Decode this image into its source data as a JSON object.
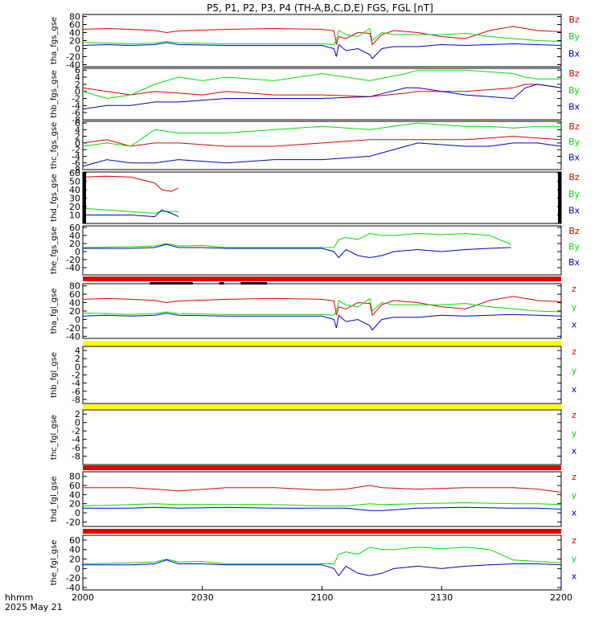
{
  "figure": {
    "title": "P5, P1, P2, P3, P4 (TH-A,B,C,D,E) FGS, FGL [nT]",
    "footer_line1": "hhmm",
    "footer_line2": "2025 May 21"
  },
  "colors": {
    "red": "#e00000",
    "green": "#00e000",
    "blue": "#0000d0",
    "yellow": "#ffff00",
    "black": "#000000"
  },
  "chart_data": [
    {
      "type": "line",
      "ylabel": "tha_fgs_gse",
      "ylim": [
        -45,
        85
      ],
      "yticks": [
        80,
        60,
        40,
        20,
        0,
        -20,
        -40
      ],
      "legend": [
        "Bz",
        "By",
        "Bx"
      ],
      "series": [
        {
          "name": "Bz",
          "x": [
            0,
            10,
            20,
            30,
            35,
            40,
            60,
            80,
            100,
            105,
            106,
            107,
            110,
            115,
            120,
            121,
            125,
            130,
            140,
            150,
            160,
            170,
            180,
            190,
            200
          ],
          "y": [
            48,
            50,
            48,
            45,
            40,
            44,
            48,
            50,
            48,
            44,
            10,
            30,
            25,
            40,
            38,
            10,
            35,
            45,
            40,
            30,
            25,
            45,
            55,
            45,
            42
          ]
        },
        {
          "name": "By",
          "x": [
            0,
            10,
            20,
            30,
            35,
            40,
            60,
            80,
            100,
            105,
            106,
            107,
            110,
            115,
            120,
            121,
            125,
            130,
            140,
            150,
            160,
            170,
            180,
            190,
            200
          ],
          "y": [
            15,
            14,
            12,
            14,
            18,
            14,
            12,
            12,
            12,
            10,
            20,
            45,
            35,
            30,
            50,
            20,
            40,
            35,
            35,
            35,
            38,
            30,
            25,
            20,
            18
          ]
        },
        {
          "name": "Bx",
          "x": [
            0,
            10,
            20,
            30,
            35,
            40,
            60,
            80,
            100,
            105,
            106,
            107,
            110,
            115,
            120,
            121,
            125,
            130,
            140,
            150,
            160,
            170,
            180,
            190,
            200
          ],
          "y": [
            8,
            10,
            8,
            10,
            15,
            10,
            8,
            8,
            8,
            0,
            -20,
            10,
            -5,
            0,
            -15,
            -25,
            0,
            5,
            5,
            10,
            8,
            10,
            12,
            10,
            8
          ]
        }
      ]
    },
    {
      "type": "line",
      "ylabel": "thb_fgs_gse",
      "ylim": [
        -8,
        6.5
      ],
      "yticks": [
        6,
        4,
        2,
        0,
        -2,
        -4,
        -6,
        -8
      ],
      "legend": [
        "Bz",
        "By",
        "Bx"
      ],
      "series": [
        {
          "name": "Bz",
          "x": [
            0,
            10,
            20,
            30,
            40,
            50,
            60,
            80,
            100,
            120,
            135,
            140,
            160,
            170,
            180,
            185,
            190,
            200
          ],
          "y": [
            1,
            0,
            -1,
            0,
            -0.5,
            -1,
            0,
            -1,
            -1,
            -1.5,
            -0.5,
            0,
            0,
            0.5,
            1,
            2,
            2,
            1
          ]
        },
        {
          "name": "By",
          "x": [
            0,
            10,
            20,
            30,
            40,
            50,
            60,
            80,
            100,
            120,
            135,
            140,
            160,
            170,
            180,
            185,
            190,
            200
          ],
          "y": [
            0,
            -2,
            -1,
            2,
            4,
            3,
            4,
            3,
            5,
            3,
            5,
            6,
            6,
            5.5,
            5,
            4,
            3.5,
            3.5
          ]
        },
        {
          "name": "Bx",
          "x": [
            0,
            10,
            20,
            30,
            40,
            50,
            60,
            80,
            100,
            120,
            135,
            140,
            160,
            170,
            180,
            185,
            190,
            200
          ],
          "y": [
            -5,
            -4,
            -4,
            -3,
            -3,
            -2.5,
            -2,
            -2,
            -2,
            -1.5,
            1,
            1,
            -1,
            -1.5,
            -2,
            1,
            2,
            1
          ]
        }
      ]
    },
    {
      "type": "line",
      "ylabel": "thc_fgs_gse",
      "ylim": [
        -8,
        6.5
      ],
      "yticks": [
        6,
        4,
        2,
        0,
        -2,
        -4,
        -6,
        -8
      ],
      "legend": [
        "Bz",
        "By",
        "Bx"
      ],
      "series": [
        {
          "name": "Bz",
          "x": [
            0,
            10,
            20,
            30,
            40,
            60,
            80,
            100,
            120,
            140,
            160,
            170,
            180,
            190,
            200
          ],
          "y": [
            0,
            1,
            -1,
            0,
            0,
            -1,
            -1,
            0,
            1,
            1,
            1,
            1.5,
            2,
            1.5,
            1
          ]
        },
        {
          "name": "By",
          "x": [
            0,
            10,
            20,
            30,
            40,
            60,
            80,
            100,
            120,
            140,
            160,
            170,
            180,
            190,
            200
          ],
          "y": [
            -1,
            0,
            -1,
            4,
            3,
            3,
            4,
            5,
            4,
            6,
            5,
            5,
            4.5,
            5,
            5
          ]
        },
        {
          "name": "Bx",
          "x": [
            0,
            10,
            20,
            30,
            40,
            60,
            80,
            100,
            120,
            140,
            160,
            170,
            180,
            190,
            200
          ],
          "y": [
            -7,
            -5,
            -6,
            -6,
            -5,
            -6,
            -5,
            -5,
            -4,
            0,
            -1,
            -1,
            0,
            0,
            -1
          ]
        }
      ]
    },
    {
      "type": "line",
      "ylabel": "thd_fgs_gse",
      "ylim": [
        0,
        61
      ],
      "yticks": [
        60,
        50,
        40,
        30,
        20,
        10
      ],
      "legend": [
        "Bz",
        "By",
        "Bx"
      ],
      "series": [
        {
          "name": "Bz",
          "x": [
            0,
            10,
            20,
            30,
            33,
            37,
            40
          ],
          "y": [
            55,
            56,
            55,
            48,
            40,
            38,
            42
          ]
        },
        {
          "name": "By",
          "x": [
            0,
            10,
            20,
            30,
            33,
            37,
            40
          ],
          "y": [
            18,
            16,
            14,
            12,
            14,
            14,
            14
          ]
        },
        {
          "name": "Bx",
          "x": [
            0,
            10,
            20,
            30,
            33,
            37,
            40
          ],
          "y": [
            10,
            10,
            10,
            8,
            16,
            12,
            8
          ]
        }
      ]
    },
    {
      "type": "line",
      "ylabel": "the_fgs_gse",
      "ylim": [
        -58,
        64
      ],
      "yticks": [
        60,
        40,
        20,
        0,
        -20,
        -40
      ],
      "legend": [
        "Bz",
        "By",
        "Bx"
      ],
      "series": [
        {
          "name": "By",
          "x": [
            0,
            20,
            30,
            35,
            40,
            50,
            60,
            80,
            100,
            105,
            107,
            110,
            115,
            120,
            125,
            130,
            140,
            150,
            160,
            170,
            179
          ],
          "y": [
            10,
            12,
            14,
            20,
            14,
            15,
            10,
            10,
            10,
            10,
            30,
            35,
            30,
            45,
            40,
            40,
            45,
            42,
            45,
            40,
            18
          ]
        },
        {
          "name": "Bx",
          "x": [
            0,
            20,
            30,
            35,
            40,
            50,
            60,
            80,
            100,
            105,
            107,
            110,
            115,
            120,
            125,
            130,
            140,
            150,
            160,
            170,
            179
          ],
          "y": [
            8,
            8,
            10,
            18,
            10,
            10,
            8,
            8,
            8,
            0,
            -15,
            5,
            -10,
            -15,
            -10,
            0,
            5,
            0,
            5,
            8,
            10
          ]
        }
      ]
    },
    {
      "type": "line",
      "ylabel": "tha_fgl_gse",
      "ylim": [
        -45,
        85
      ],
      "yticks": [
        80,
        60,
        40,
        20,
        0,
        -20,
        -40
      ],
      "legend": [
        "z",
        "y",
        "x"
      ],
      "series": [
        {
          "name": "z",
          "x": [
            0,
            10,
            20,
            30,
            35,
            40,
            60,
            80,
            100,
            105,
            106,
            107,
            110,
            115,
            120,
            121,
            125,
            130,
            140,
            150,
            160,
            170,
            180,
            190,
            200
          ],
          "y": [
            48,
            50,
            48,
            45,
            40,
            44,
            48,
            50,
            48,
            44,
            10,
            30,
            25,
            40,
            38,
            10,
            35,
            45,
            40,
            30,
            25,
            45,
            55,
            45,
            42
          ]
        },
        {
          "name": "y",
          "x": [
            0,
            10,
            20,
            30,
            35,
            40,
            60,
            80,
            100,
            105,
            106,
            107,
            110,
            115,
            120,
            121,
            125,
            130,
            140,
            150,
            160,
            170,
            180,
            190,
            200
          ],
          "y": [
            15,
            14,
            12,
            14,
            18,
            14,
            12,
            12,
            12,
            10,
            20,
            45,
            35,
            30,
            50,
            20,
            40,
            35,
            35,
            35,
            38,
            30,
            25,
            20,
            18
          ]
        },
        {
          "name": "x",
          "x": [
            0,
            10,
            20,
            30,
            35,
            40,
            60,
            80,
            100,
            105,
            106,
            107,
            110,
            115,
            120,
            121,
            125,
            130,
            140,
            150,
            160,
            170,
            180,
            190,
            200
          ],
          "y": [
            8,
            10,
            8,
            10,
            15,
            10,
            8,
            8,
            8,
            0,
            -20,
            10,
            -5,
            0,
            -15,
            -25,
            0,
            5,
            5,
            10,
            8,
            10,
            12,
            10,
            8
          ]
        }
      ]
    },
    {
      "type": "line",
      "ylabel": "thb_fgl_gse",
      "ylim": [
        -9,
        5
      ],
      "yticks": [
        4,
        2,
        0,
        -2,
        -4,
        -6,
        -8
      ],
      "legend": [
        "z",
        "y",
        "x"
      ],
      "series": []
    },
    {
      "type": "line",
      "ylabel": "thc_fgl_gse",
      "ylim": [
        -10,
        3
      ],
      "yticks": [
        2,
        0,
        -2,
        -4,
        -6,
        -8
      ],
      "legend": [
        "z",
        "y",
        "x"
      ],
      "series": []
    },
    {
      "type": "line",
      "ylabel": "thd_fgl_gse",
      "ylim": [
        -30,
        90
      ],
      "yticks": [
        80,
        60,
        40,
        20,
        0,
        -20
      ],
      "legend": [
        "z",
        "y",
        "x"
      ],
      "series": [
        {
          "name": "z",
          "x": [
            0,
            20,
            30,
            40,
            60,
            80,
            100,
            110,
            120,
            125,
            140,
            160,
            180,
            190,
            200
          ],
          "y": [
            55,
            55,
            52,
            48,
            55,
            55,
            50,
            52,
            60,
            55,
            52,
            55,
            55,
            52,
            45
          ]
        },
        {
          "name": "y",
          "x": [
            0,
            20,
            30,
            40,
            60,
            80,
            100,
            110,
            120,
            125,
            140,
            160,
            180,
            190,
            200
          ],
          "y": [
            15,
            18,
            20,
            18,
            18,
            18,
            15,
            15,
            20,
            18,
            20,
            22,
            20,
            20,
            18
          ]
        },
        {
          "name": "x",
          "x": [
            0,
            20,
            30,
            40,
            60,
            80,
            100,
            110,
            120,
            125,
            140,
            160,
            180,
            190,
            200
          ],
          "y": [
            10,
            10,
            12,
            10,
            12,
            10,
            10,
            10,
            5,
            5,
            10,
            12,
            10,
            10,
            8
          ]
        }
      ]
    },
    {
      "type": "line",
      "ylabel": "the_fgl_gse",
      "ylim": [
        -45,
        70
      ],
      "yticks": [
        60,
        40,
        20,
        0,
        -20,
        -40
      ],
      "legend": [
        "z",
        "y",
        "x"
      ],
      "series": [
        {
          "name": "y",
          "x": [
            0,
            20,
            30,
            35,
            40,
            50,
            60,
            80,
            100,
            105,
            107,
            110,
            115,
            120,
            125,
            130,
            140,
            150,
            160,
            170,
            180,
            190,
            200
          ],
          "y": [
            10,
            12,
            14,
            20,
            14,
            15,
            10,
            10,
            10,
            10,
            30,
            35,
            30,
            45,
            40,
            40,
            45,
            42,
            45,
            40,
            18,
            15,
            12
          ]
        },
        {
          "name": "x",
          "x": [
            0,
            20,
            30,
            35,
            40,
            50,
            60,
            80,
            100,
            105,
            107,
            110,
            115,
            120,
            125,
            130,
            140,
            150,
            160,
            170,
            180,
            190,
            200
          ],
          "y": [
            8,
            8,
            10,
            18,
            10,
            10,
            8,
            8,
            8,
            0,
            -15,
            5,
            -10,
            -15,
            -10,
            0,
            5,
            0,
            5,
            8,
            10,
            10,
            8
          ]
        }
      ]
    }
  ],
  "x_axis": {
    "range": [
      "2000",
      "2200"
    ],
    "ticks": [
      {
        "label": "2000",
        "x": 0
      },
      {
        "label": "2030",
        "x": 30
      },
      {
        "label": "2100",
        "x": 60
      },
      {
        "label": "2130",
        "x": 90
      },
      {
        "label": "2200",
        "x": 120
      }
    ]
  },
  "status_bars": [
    {
      "after_panel": 4,
      "color": "red",
      "black_segments": [
        [
          28,
          46
        ],
        [
          57,
          59
        ],
        [
          66,
          77
        ]
      ]
    },
    {
      "after_panel": 5,
      "color": "yellow",
      "black_segments": []
    },
    {
      "after_panel": 6,
      "color": "yellow",
      "black_segments": []
    },
    {
      "after_panel": 7,
      "color": "red",
      "black_segments": []
    },
    {
      "after_panel": 8,
      "color": "red",
      "black_segments": []
    }
  ]
}
